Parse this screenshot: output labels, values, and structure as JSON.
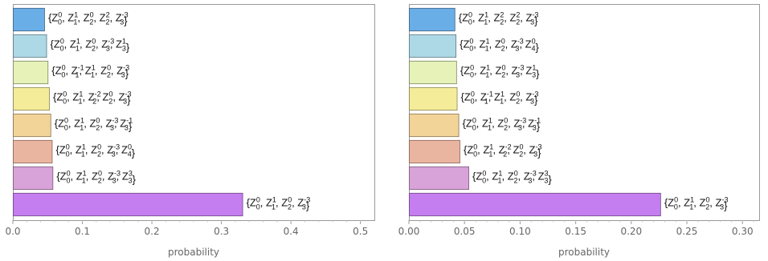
{
  "chart_data": [
    {
      "type": "bar",
      "orientation": "horizontal",
      "xlabel": "probability",
      "xlim": [
        0,
        0.52
      ],
      "ticks": [
        "0.0",
        "0.1",
        "0.2",
        "0.3",
        "0.4",
        "0.5"
      ],
      "tick_values": [
        0,
        0.1,
        0.2,
        0.3,
        0.4,
        0.5
      ],
      "grid": false,
      "categories": [
        {
          "label": [
            [
              "Z",
              "0",
              "0"
            ],
            [
              "Z",
              "1",
              "1"
            ],
            [
              "Z",
              "2",
              "0"
            ],
            [
              "Z",
              "2",
              "2"
            ],
            [
              "Z",
              "3",
              "-3"
            ]
          ],
          "value": 0.045,
          "color": "#6aaee8"
        },
        {
          "label": [
            [
              "Z",
              "0",
              "0"
            ],
            [
              "Z",
              "1",
              "1"
            ],
            [
              "Z",
              "2",
              "0"
            ],
            [
              "Z",
              "3",
              "-3"
            ],
            [
              "Z",
              "3",
              "1"
            ]
          ],
          "value": 0.048,
          "color": "#add8e6"
        },
        {
          "label": [
            [
              "Z",
              "0",
              "0"
            ],
            [
              "Z",
              "1",
              "-1"
            ],
            [
              "Z",
              "1",
              "1"
            ],
            [
              "Z",
              "2",
              "0"
            ],
            [
              "Z",
              "3",
              "-3"
            ]
          ],
          "value": 0.05,
          "color": "#e6f2b8"
        },
        {
          "label": [
            [
              "Z",
              "0",
              "0"
            ],
            [
              "Z",
              "1",
              "1"
            ],
            [
              "Z",
              "2",
              "-2"
            ],
            [
              "Z",
              "2",
              "0"
            ],
            [
              "Z",
              "3",
              "-3"
            ]
          ],
          "value": 0.052,
          "color": "#f5ec9a"
        },
        {
          "label": [
            [
              "Z",
              "0",
              "0"
            ],
            [
              "Z",
              "1",
              "1"
            ],
            [
              "Z",
              "2",
              "0"
            ],
            [
              "Z",
              "3",
              "-3"
            ],
            [
              "Z",
              "3",
              "-1"
            ]
          ],
          "value": 0.054,
          "color": "#f2d398"
        },
        {
          "label": [
            [
              "Z",
              "0",
              "0"
            ],
            [
              "Z",
              "1",
              "1"
            ],
            [
              "Z",
              "2",
              "0"
            ],
            [
              "Z",
              "3",
              "-3"
            ],
            [
              "Z",
              "4",
              "0"
            ]
          ],
          "value": 0.056,
          "color": "#eab5a0"
        },
        {
          "label": [
            [
              "Z",
              "0",
              "0"
            ],
            [
              "Z",
              "1",
              "1"
            ],
            [
              "Z",
              "2",
              "0"
            ],
            [
              "Z",
              "3",
              "-3"
            ],
            [
              "Z",
              "3",
              "3"
            ]
          ],
          "value": 0.057,
          "color": "#d8a3d8"
        },
        {
          "label": [
            [
              "Z",
              "0",
              "0"
            ],
            [
              "Z",
              "1",
              "1"
            ],
            [
              "Z",
              "2",
              "0"
            ],
            [
              "Z",
              "3",
              "-3"
            ]
          ],
          "value": 0.33,
          "color": "#c57ef0"
        }
      ]
    },
    {
      "type": "bar",
      "orientation": "horizontal",
      "xlabel": "probability",
      "xlim": [
        0,
        0.315
      ],
      "ticks": [
        "0.00",
        "0.05",
        "0.10",
        "0.15",
        "0.20",
        "0.25",
        "0.30"
      ],
      "tick_values": [
        0,
        0.05,
        0.1,
        0.15,
        0.2,
        0.25,
        0.3
      ],
      "grid": false,
      "categories": [
        {
          "label": [
            [
              "Z",
              "0",
              "0"
            ],
            [
              "Z",
              "1",
              "1"
            ],
            [
              "Z",
              "2",
              "2"
            ],
            [
              "Z",
              "2",
              "2"
            ],
            [
              "Z",
              "3",
              "-3"
            ]
          ],
          "value": 0.041,
          "color": "#6aaee8"
        },
        {
          "label": [
            [
              "Z",
              "0",
              "0"
            ],
            [
              "Z",
              "1",
              "1"
            ],
            [
              "Z",
              "2",
              "0"
            ],
            [
              "Z",
              "3",
              "-3"
            ],
            [
              "Z",
              "4",
              "0"
            ]
          ],
          "value": 0.042,
          "color": "#add8e6"
        },
        {
          "label": [
            [
              "Z",
              "0",
              "0"
            ],
            [
              "Z",
              "1",
              "1"
            ],
            [
              "Z",
              "2",
              "0"
            ],
            [
              "Z",
              "3",
              "-3"
            ],
            [
              "Z",
              "3",
              "1"
            ]
          ],
          "value": 0.0425,
          "color": "#e6f2b8"
        },
        {
          "label": [
            [
              "Z",
              "0",
              "0"
            ],
            [
              "Z",
              "1",
              "-1"
            ],
            [
              "Z",
              "1",
              "1"
            ],
            [
              "Z",
              "2",
              "0"
            ],
            [
              "Z",
              "3",
              "-3"
            ]
          ],
          "value": 0.043,
          "color": "#f5ec9a"
        },
        {
          "label": [
            [
              "Z",
              "0",
              "0"
            ],
            [
              "Z",
              "1",
              "1"
            ],
            [
              "Z",
              "2",
              "0"
            ],
            [
              "Z",
              "3",
              "-3"
            ],
            [
              "Z",
              "3",
              "-1"
            ]
          ],
          "value": 0.0445,
          "color": "#f2d398"
        },
        {
          "label": [
            [
              "Z",
              "0",
              "0"
            ],
            [
              "Z",
              "1",
              "1"
            ],
            [
              "Z",
              "2",
              "-2"
            ],
            [
              "Z",
              "2",
              "0"
            ],
            [
              "Z",
              "3",
              "-3"
            ]
          ],
          "value": 0.0455,
          "color": "#eab5a0"
        },
        {
          "label": [
            [
              "Z",
              "0",
              "0"
            ],
            [
              "Z",
              "1",
              "1"
            ],
            [
              "Z",
              "2",
              "0"
            ],
            [
              "Z",
              "3",
              "-3"
            ],
            [
              "Z",
              "3",
              "3"
            ]
          ],
          "value": 0.0535,
          "color": "#d8a3d8"
        },
        {
          "label": [
            [
              "Z",
              "0",
              "0"
            ],
            [
              "Z",
              "1",
              "1"
            ],
            [
              "Z",
              "2",
              "0"
            ],
            [
              "Z",
              "3",
              "-3"
            ]
          ],
          "value": 0.226,
          "color": "#c57ef0"
        }
      ]
    }
  ]
}
